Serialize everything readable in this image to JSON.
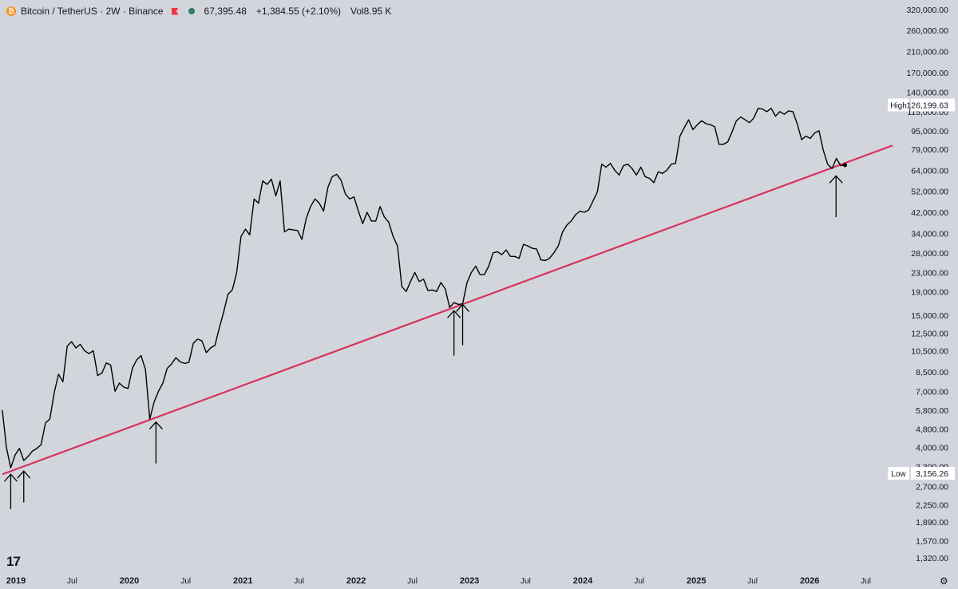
{
  "header": {
    "pair": "Bitcoin / TetherUS · 2W · Binance",
    "coin_icon": "bitcoin-icon",
    "flag_icon": "red-flag-icon",
    "status_icon": "market-status-dot-icon",
    "last_price": "67,395.48",
    "change": "+1,384.55 (+2.10%)",
    "volume": "Vol8.95 K"
  },
  "brand": {
    "logo_text": "17",
    "settings_icon": "gear-icon"
  },
  "colors": {
    "background": "#d2d5dc",
    "price_line": "#000000",
    "trendline": "#d6335a",
    "axis_text": "#131722",
    "label_bg": "#ffffff"
  },
  "chart_data": {
    "type": "line",
    "title": "Bitcoin / TetherUS · 2W · Binance",
    "y_scale": "log",
    "ylim": [
      1200,
      330000
    ],
    "xlim": [
      "2018-12-01",
      "2026-09-25"
    ],
    "grid": false,
    "y_ticks": [
      "320,000.00",
      "260,000.00",
      "210,000.00",
      "170,000.00",
      "140,000.00",
      "115,000.00",
      "95,000.00",
      "79,000.00",
      "64,000.00",
      "52,000.00",
      "42,000.00",
      "34,000.00",
      "28,000.00",
      "23,000.00",
      "19,000.00",
      "15,000.00",
      "12,500.00",
      "10,500.00",
      "8,500.00",
      "7,000.00",
      "5,800.00",
      "4,800.00",
      "4,000.00",
      "3,300.00",
      "2,700.00",
      "2,250.00",
      "1,890.00",
      "1,570.00",
      "1,320.00"
    ],
    "x_ticks": [
      {
        "label": "2019",
        "date": "2019-01-01",
        "bold": true
      },
      {
        "label": "Jul",
        "date": "2019-07-01",
        "bold": false
      },
      {
        "label": "2020",
        "date": "2020-01-01",
        "bold": true
      },
      {
        "label": "Jul",
        "date": "2020-07-01",
        "bold": false
      },
      {
        "label": "2021",
        "date": "2021-01-01",
        "bold": true
      },
      {
        "label": "Jul",
        "date": "2021-07-01",
        "bold": false
      },
      {
        "label": "2022",
        "date": "2022-01-01",
        "bold": true
      },
      {
        "label": "Jul",
        "date": "2022-07-01",
        "bold": false
      },
      {
        "label": "2023",
        "date": "2023-01-01",
        "bold": true
      },
      {
        "label": "Jul",
        "date": "2023-07-01",
        "bold": false
      },
      {
        "label": "2024",
        "date": "2024-01-01",
        "bold": true
      },
      {
        "label": "Jul",
        "date": "2024-07-01",
        "bold": false
      },
      {
        "label": "2025",
        "date": "2025-01-01",
        "bold": true
      },
      {
        "label": "Jul",
        "date": "2025-07-01",
        "bold": false
      },
      {
        "label": "2026",
        "date": "2026-01-01",
        "bold": true
      },
      {
        "label": "Jul",
        "date": "2026-07-01",
        "bold": false
      }
    ],
    "series": [
      {
        "type": "line",
        "points": [
          [
            "2018-11-18",
            5800
          ],
          [
            "2018-12-01",
            4000
          ],
          [
            "2018-12-15",
            3250
          ],
          [
            "2018-12-29",
            3700
          ],
          [
            "2019-01-12",
            3950
          ],
          [
            "2019-01-26",
            3500
          ],
          [
            "2019-02-09",
            3650
          ],
          [
            "2019-02-23",
            3850
          ],
          [
            "2019-03-09",
            3950
          ],
          [
            "2019-03-23",
            4100
          ],
          [
            "2019-04-06",
            5100
          ],
          [
            "2019-04-20",
            5300
          ],
          [
            "2019-05-04",
            6900
          ],
          [
            "2019-05-18",
            8300
          ],
          [
            "2019-06-01",
            7700
          ],
          [
            "2019-06-15",
            11000
          ],
          [
            "2019-06-29",
            11500
          ],
          [
            "2019-07-13",
            10800
          ],
          [
            "2019-07-27",
            11200
          ],
          [
            "2019-08-10",
            10500
          ],
          [
            "2019-08-24",
            10200
          ],
          [
            "2019-09-07",
            10500
          ],
          [
            "2019-09-21",
            8200
          ],
          [
            "2019-10-05",
            8400
          ],
          [
            "2019-10-19",
            9300
          ],
          [
            "2019-11-02",
            9100
          ],
          [
            "2019-11-16",
            7000
          ],
          [
            "2019-11-30",
            7600
          ],
          [
            "2019-12-14",
            7300
          ],
          [
            "2019-12-28",
            7200
          ],
          [
            "2020-01-11",
            8800
          ],
          [
            "2020-01-25",
            9600
          ],
          [
            "2020-02-08",
            10000
          ],
          [
            "2020-02-22",
            8700
          ],
          [
            "2020-03-07",
            5300
          ],
          [
            "2020-03-21",
            6300
          ],
          [
            "2020-04-04",
            7000
          ],
          [
            "2020-04-18",
            7600
          ],
          [
            "2020-05-02",
            8800
          ],
          [
            "2020-05-16",
            9200
          ],
          [
            "2020-05-30",
            9800
          ],
          [
            "2020-06-13",
            9400
          ],
          [
            "2020-06-27",
            9250
          ],
          [
            "2020-07-11",
            9350
          ],
          [
            "2020-07-25",
            11300
          ],
          [
            "2020-08-08",
            11800
          ],
          [
            "2020-08-22",
            11600
          ],
          [
            "2020-09-05",
            10300
          ],
          [
            "2020-09-19",
            10800
          ],
          [
            "2020-10-03",
            11100
          ],
          [
            "2020-10-17",
            13200
          ],
          [
            "2020-10-31",
            15500
          ],
          [
            "2020-11-14",
            18500
          ],
          [
            "2020-11-28",
            19300
          ],
          [
            "2020-12-12",
            23000
          ],
          [
            "2020-12-26",
            33000
          ],
          [
            "2021-01-09",
            35500
          ],
          [
            "2021-01-23",
            33500
          ],
          [
            "2021-02-06",
            48000
          ],
          [
            "2021-02-20",
            46000
          ],
          [
            "2021-03-06",
            57500
          ],
          [
            "2021-03-20",
            55500
          ],
          [
            "2021-04-03",
            58500
          ],
          [
            "2021-04-17",
            49500
          ],
          [
            "2021-05-01",
            57500
          ],
          [
            "2021-05-15",
            34500
          ],
          [
            "2021-05-29",
            35500
          ],
          [
            "2021-06-12",
            35200
          ],
          [
            "2021-06-26",
            35000
          ],
          [
            "2021-07-10",
            32000
          ],
          [
            "2021-07-24",
            39500
          ],
          [
            "2021-08-07",
            44500
          ],
          [
            "2021-08-21",
            48000
          ],
          [
            "2021-09-04",
            46000
          ],
          [
            "2021-09-18",
            42500
          ],
          [
            "2021-10-02",
            54000
          ],
          [
            "2021-10-16",
            60000
          ],
          [
            "2021-10-30",
            61500
          ],
          [
            "2021-11-13",
            58000
          ],
          [
            "2021-11-27",
            50500
          ],
          [
            "2021-12-11",
            48000
          ],
          [
            "2021-12-25",
            49000
          ],
          [
            "2022-01-08",
            42500
          ],
          [
            "2022-01-22",
            37500
          ],
          [
            "2022-02-05",
            42000
          ],
          [
            "2022-02-19",
            38500
          ],
          [
            "2022-03-05",
            38500
          ],
          [
            "2022-03-19",
            44500
          ],
          [
            "2022-04-02",
            40000
          ],
          [
            "2022-04-16",
            38000
          ],
          [
            "2022-04-30",
            33000
          ],
          [
            "2022-05-14",
            30000
          ],
          [
            "2022-05-28",
            20000
          ],
          [
            "2022-06-11",
            19000
          ],
          [
            "2022-06-25",
            21000
          ],
          [
            "2022-07-09",
            23000
          ],
          [
            "2022-07-23",
            21000
          ],
          [
            "2022-08-06",
            21500
          ],
          [
            "2022-08-20",
            19200
          ],
          [
            "2022-09-03",
            19300
          ],
          [
            "2022-09-17",
            19000
          ],
          [
            "2022-10-01",
            20800
          ],
          [
            "2022-10-15",
            19500
          ],
          [
            "2022-10-29",
            16200
          ],
          [
            "2022-11-12",
            17000
          ],
          [
            "2022-11-26",
            16700
          ],
          [
            "2022-12-10",
            16800
          ],
          [
            "2022-12-24",
            20800
          ],
          [
            "2023-01-07",
            23000
          ],
          [
            "2023-01-21",
            24500
          ],
          [
            "2023-02-04",
            22500
          ],
          [
            "2023-02-18",
            22500
          ],
          [
            "2023-03-04",
            24500
          ],
          [
            "2023-03-18",
            28000
          ],
          [
            "2023-04-01",
            28300
          ],
          [
            "2023-04-15",
            27500
          ],
          [
            "2023-04-29",
            28800
          ],
          [
            "2023-05-13",
            27000
          ],
          [
            "2023-05-27",
            27000
          ],
          [
            "2023-06-10",
            26500
          ],
          [
            "2023-06-24",
            30500
          ],
          [
            "2023-07-08",
            30000
          ],
          [
            "2023-07-22",
            29300
          ],
          [
            "2023-08-05",
            29100
          ],
          [
            "2023-08-19",
            26100
          ],
          [
            "2023-09-02",
            25900
          ],
          [
            "2023-09-16",
            26500
          ],
          [
            "2023-09-30",
            28000
          ],
          [
            "2023-10-14",
            30000
          ],
          [
            "2023-10-28",
            34500
          ],
          [
            "2023-11-11",
            37000
          ],
          [
            "2023-11-25",
            38500
          ],
          [
            "2023-12-09",
            41000
          ],
          [
            "2023-12-23",
            42500
          ],
          [
            "2024-01-06",
            42000
          ],
          [
            "2024-01-20",
            43000
          ],
          [
            "2024-02-03",
            47000
          ],
          [
            "2024-02-17",
            51500
          ],
          [
            "2024-03-02",
            68000
          ],
          [
            "2024-03-16",
            66000
          ],
          [
            "2024-03-30",
            68500
          ],
          [
            "2024-04-13",
            64000
          ],
          [
            "2024-04-27",
            61000
          ],
          [
            "2024-05-11",
            67000
          ],
          [
            "2024-05-25",
            68000
          ],
          [
            "2024-06-08",
            65000
          ],
          [
            "2024-06-22",
            61000
          ],
          [
            "2024-07-06",
            66000
          ],
          [
            "2024-07-20",
            60000
          ],
          [
            "2024-08-03",
            59000
          ],
          [
            "2024-08-17",
            56500
          ],
          [
            "2024-08-31",
            63000
          ],
          [
            "2024-09-14",
            62000
          ],
          [
            "2024-09-28",
            64000
          ],
          [
            "2024-10-12",
            68000
          ],
          [
            "2024-10-26",
            68500
          ],
          [
            "2024-11-09",
            90000
          ],
          [
            "2024-11-23",
            98000
          ],
          [
            "2024-12-07",
            106000
          ],
          [
            "2024-12-21",
            96000
          ],
          [
            "2025-01-04",
            101000
          ],
          [
            "2025-01-18",
            105000
          ],
          [
            "2025-02-01",
            102000
          ],
          [
            "2025-02-15",
            101000
          ],
          [
            "2025-03-01",
            99000
          ],
          [
            "2025-03-15",
            83000
          ],
          [
            "2025-03-29",
            83000
          ],
          [
            "2025-04-12",
            85000
          ],
          [
            "2025-04-26",
            94000
          ],
          [
            "2025-05-10",
            105000
          ],
          [
            "2025-05-24",
            109000
          ],
          [
            "2025-06-07",
            106000
          ],
          [
            "2025-06-21",
            103000
          ],
          [
            "2025-07-05",
            108000
          ],
          [
            "2025-07-19",
            119000
          ],
          [
            "2025-08-02",
            118000
          ],
          [
            "2025-08-16",
            115000
          ],
          [
            "2025-08-30",
            119000
          ],
          [
            "2025-09-13",
            110000
          ],
          [
            "2025-09-27",
            115000
          ],
          [
            "2025-10-11",
            112000
          ],
          [
            "2025-10-25",
            116000
          ],
          [
            "2025-11-08",
            115000
          ],
          [
            "2025-11-22",
            102000
          ],
          [
            "2025-12-06",
            87000
          ],
          [
            "2025-12-20",
            90000
          ],
          [
            "2026-01-03",
            88000
          ],
          [
            "2026-01-17",
            93000
          ],
          [
            "2026-01-31",
            95000
          ],
          [
            "2026-02-14",
            78000
          ],
          [
            "2026-02-28",
            68000
          ],
          [
            "2026-03-14",
            65000
          ],
          [
            "2026-03-28",
            72000
          ],
          [
            "2026-04-11",
            67000
          ],
          [
            "2026-04-25",
            67395
          ]
        ]
      }
    ],
    "trendline": {
      "points": [
        [
          "2018-11-18",
          3050
        ],
        [
          "2026-09-25",
          82000
        ]
      ]
    },
    "markers": [
      {
        "type": "arrow-up",
        "date": "2018-12-15",
        "from": 2150,
        "to": 3050
      },
      {
        "type": "arrow-up",
        "date": "2019-01-26",
        "from": 2300,
        "to": 3150
      },
      {
        "type": "arrow-up",
        "date": "2020-03-27",
        "from": 3400,
        "to": 5150
      },
      {
        "type": "arrow-up",
        "date": "2022-11-12",
        "from": 10000,
        "to": 15700
      },
      {
        "type": "arrow-up",
        "date": "2022-12-10",
        "from": 11100,
        "to": 16700
      },
      {
        "type": "arrow-up",
        "date": "2026-03-27",
        "from": 40000,
        "to": 60500
      }
    ],
    "last_point": {
      "date": "2026-04-25",
      "value": 67395
    },
    "price_labels": [
      {
        "label": "High",
        "value": "126,199.63",
        "at": 123000
      },
      {
        "label": "Low",
        "value": "3,156.26",
        "at": 3080
      }
    ]
  }
}
